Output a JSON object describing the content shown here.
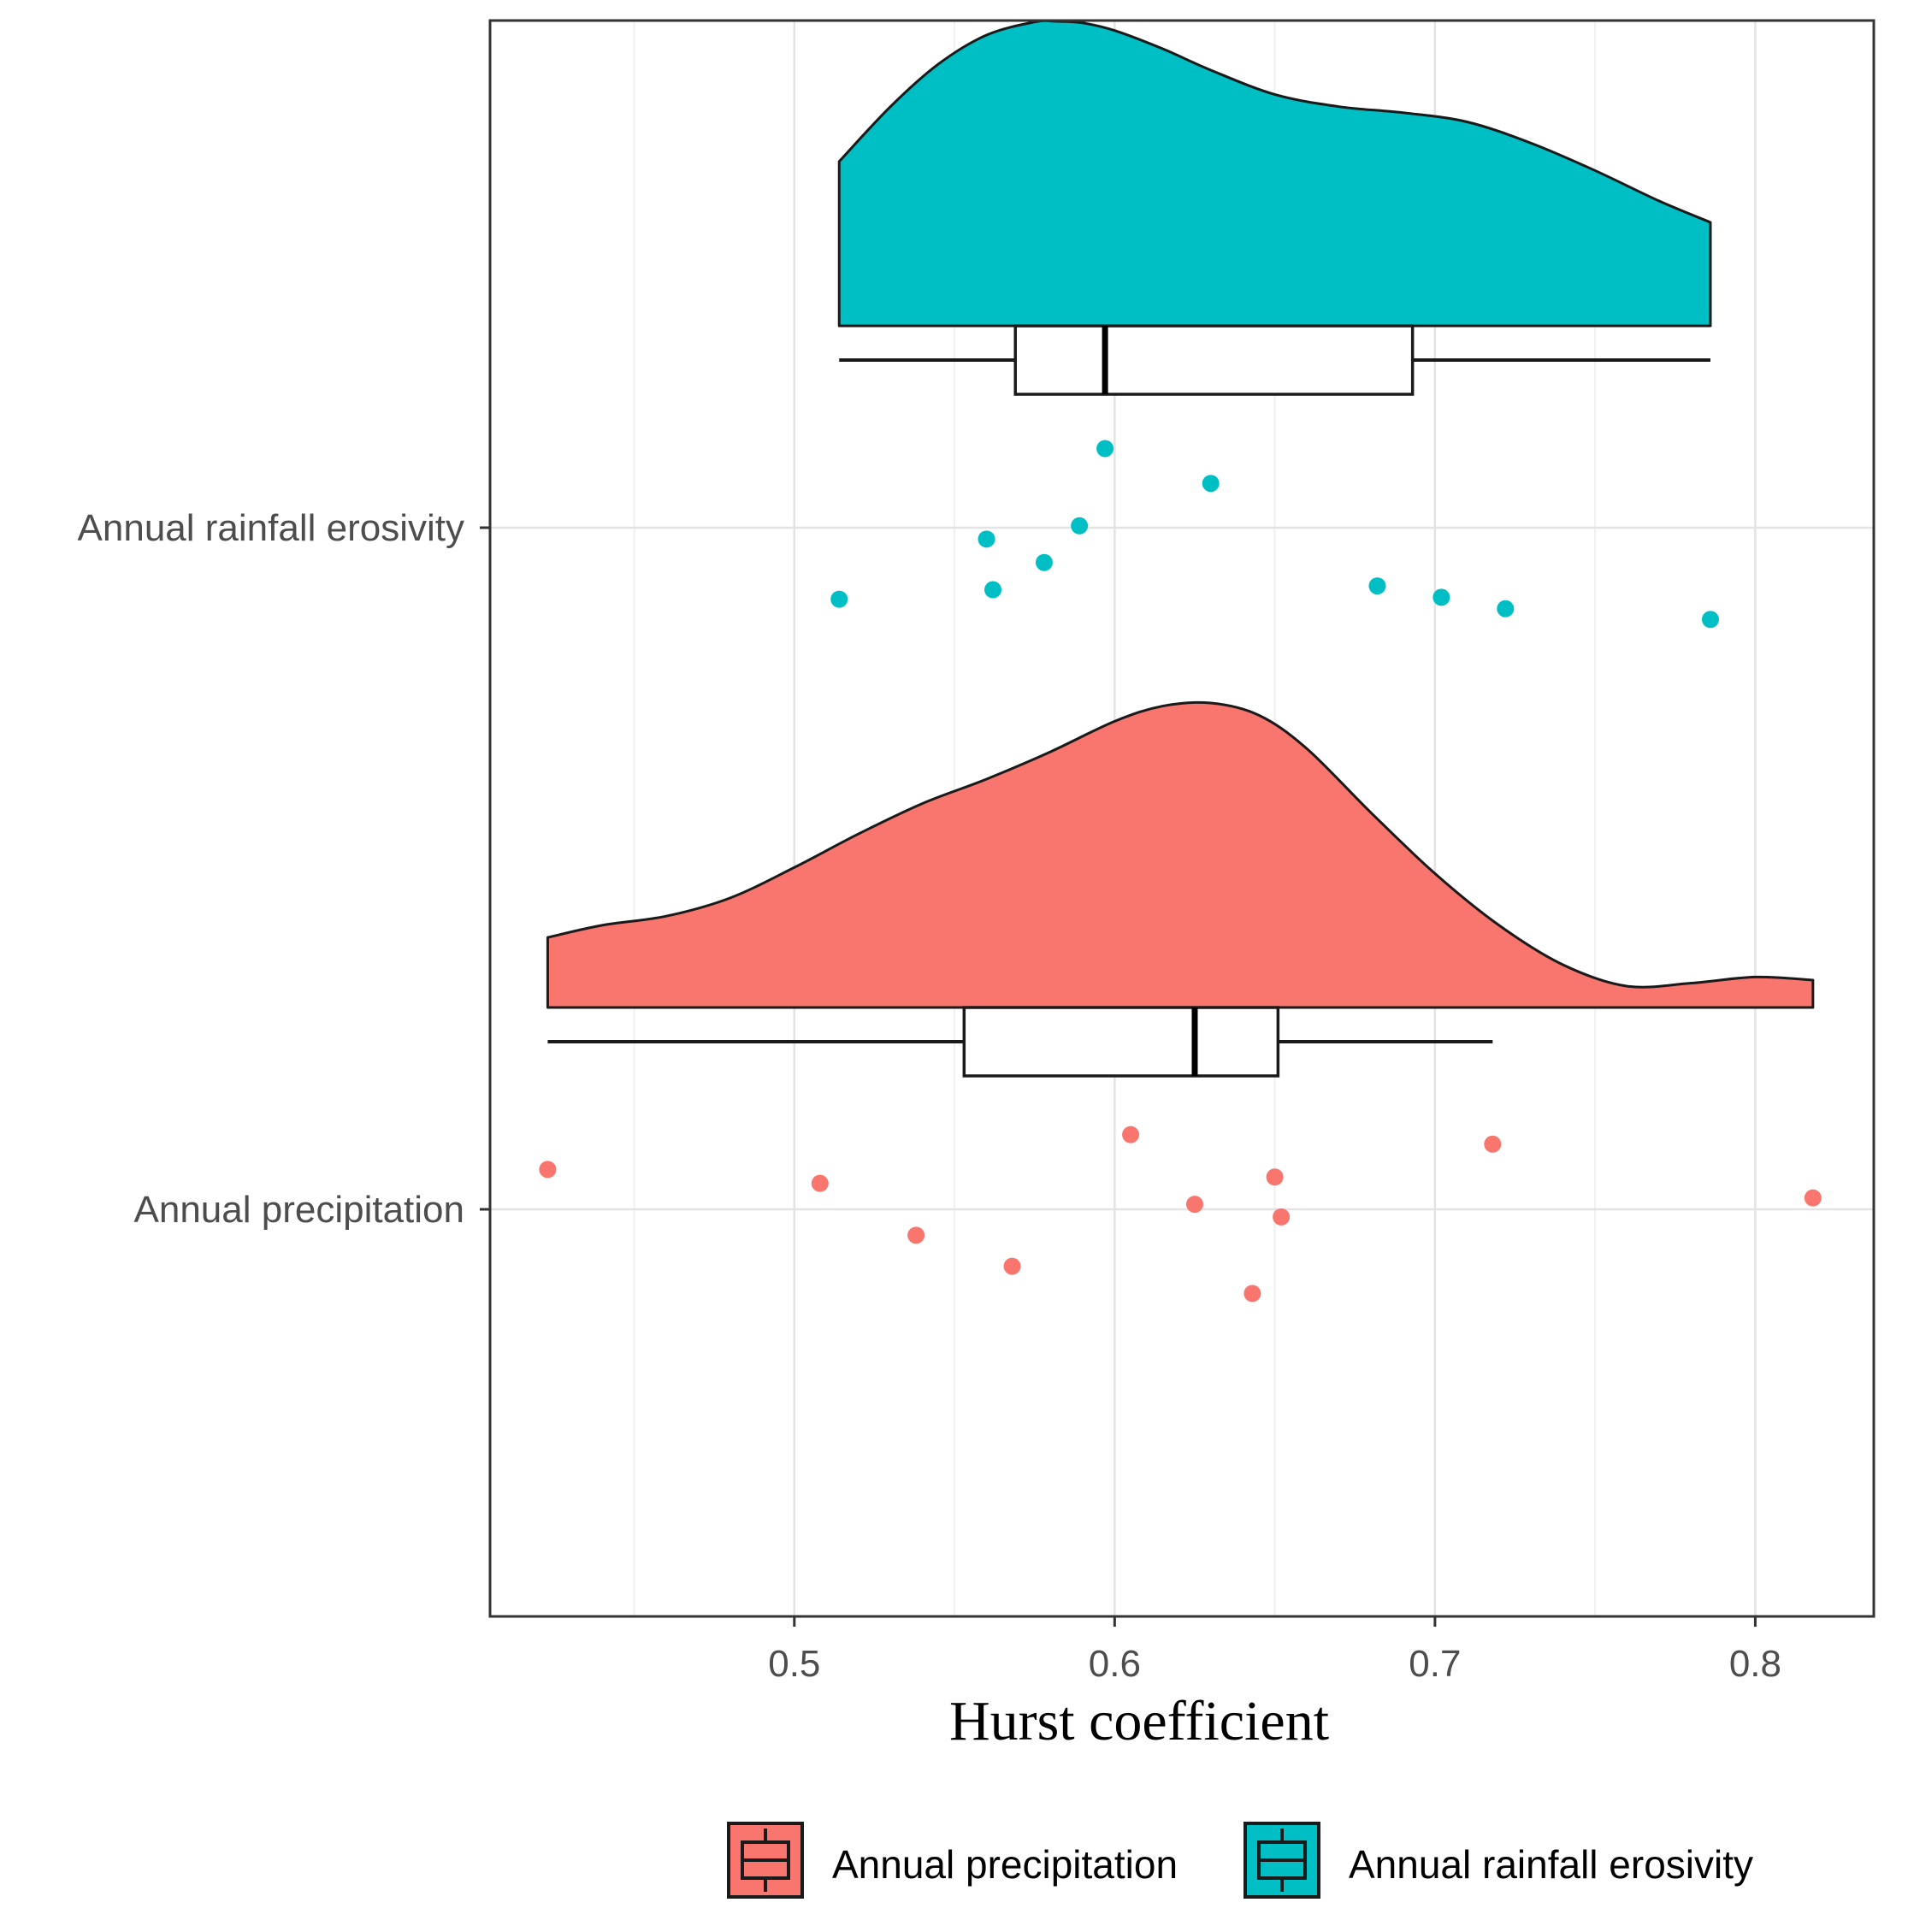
{
  "chart_data": {
    "type": "raincloud",
    "title": "",
    "xlabel": "Hurst coefficient",
    "ylabel": "",
    "xlim": [
      0.405,
      0.837
    ],
    "xticks": [
      0.5,
      0.6,
      0.7,
      0.8
    ],
    "xtick_labels": [
      "0.5",
      "0.6",
      "0.7",
      "0.8"
    ],
    "grid": true,
    "legend_position": "bottom",
    "series": [
      {
        "name": "Annual rainfall erosivity",
        "color": "#00BFC4",
        "points": [
          {
            "x": 0.597,
            "jitter": 0.125
          },
          {
            "x": 0.63,
            "jitter": 0.07
          },
          {
            "x": 0.589,
            "jitter": 0.003
          },
          {
            "x": 0.56,
            "jitter": -0.018
          },
          {
            "x": 0.578,
            "jitter": -0.055
          },
          {
            "x": 0.562,
            "jitter": -0.098
          },
          {
            "x": 0.514,
            "jitter": -0.113
          },
          {
            "x": 0.682,
            "jitter": -0.092
          },
          {
            "x": 0.702,
            "jitter": -0.11
          },
          {
            "x": 0.722,
            "jitter": -0.128
          },
          {
            "x": 0.786,
            "jitter": -0.145
          }
        ],
        "box": {
          "min": 0.514,
          "q1": 0.569,
          "median": 0.597,
          "q3": 0.693,
          "max": 0.786
        },
        "density": {
          "x": [
            0.514,
            0.53,
            0.545,
            0.56,
            0.575,
            0.582,
            0.59,
            0.6,
            0.615,
            0.63,
            0.65,
            0.67,
            0.69,
            0.71,
            0.73,
            0.75,
            0.77,
            0.786
          ],
          "y": [
            0.54,
            0.72,
            0.86,
            0.955,
            0.998,
            1.0,
            0.995,
            0.97,
            0.91,
            0.84,
            0.76,
            0.72,
            0.7,
            0.67,
            0.6,
            0.51,
            0.41,
            0.34
          ]
        }
      },
      {
        "name": "Annual precipitation",
        "color": "#F8766D",
        "points": [
          {
            "x": 0.605,
            "jitter": 0.118
          },
          {
            "x": 0.718,
            "jitter": 0.103
          },
          {
            "x": 0.423,
            "jitter": 0.063
          },
          {
            "x": 0.508,
            "jitter": 0.041
          },
          {
            "x": 0.65,
            "jitter": 0.051
          },
          {
            "x": 0.625,
            "jitter": 0.008
          },
          {
            "x": 0.652,
            "jitter": -0.012
          },
          {
            "x": 0.818,
            "jitter": 0.018
          },
          {
            "x": 0.538,
            "jitter": -0.041
          },
          {
            "x": 0.568,
            "jitter": -0.09
          },
          {
            "x": 0.643,
            "jitter": -0.133
          }
        ],
        "box": {
          "min": 0.423,
          "q1": 0.553,
          "median": 0.625,
          "q3": 0.651,
          "max": 0.718
        },
        "density": {
          "x": [
            0.423,
            0.44,
            0.46,
            0.48,
            0.5,
            0.52,
            0.54,
            0.56,
            0.58,
            0.6,
            0.615,
            0.63,
            0.645,
            0.66,
            0.68,
            0.7,
            0.72,
            0.74,
            0.76,
            0.78,
            0.8,
            0.818
          ],
          "y": [
            0.23,
            0.27,
            0.3,
            0.36,
            0.46,
            0.57,
            0.67,
            0.75,
            0.84,
            0.94,
            0.99,
            1.0,
            0.96,
            0.85,
            0.64,
            0.44,
            0.27,
            0.14,
            0.07,
            0.08,
            0.1,
            0.09
          ]
        }
      }
    ],
    "categories": [
      "Annual rainfall erosivity",
      "Annual precipitation"
    ]
  },
  "legend": {
    "items": [
      {
        "label": "Annual precipitation",
        "color": "#F8766D"
      },
      {
        "label": "Annual rainfall erosivity",
        "color": "#00BFC4"
      }
    ]
  }
}
